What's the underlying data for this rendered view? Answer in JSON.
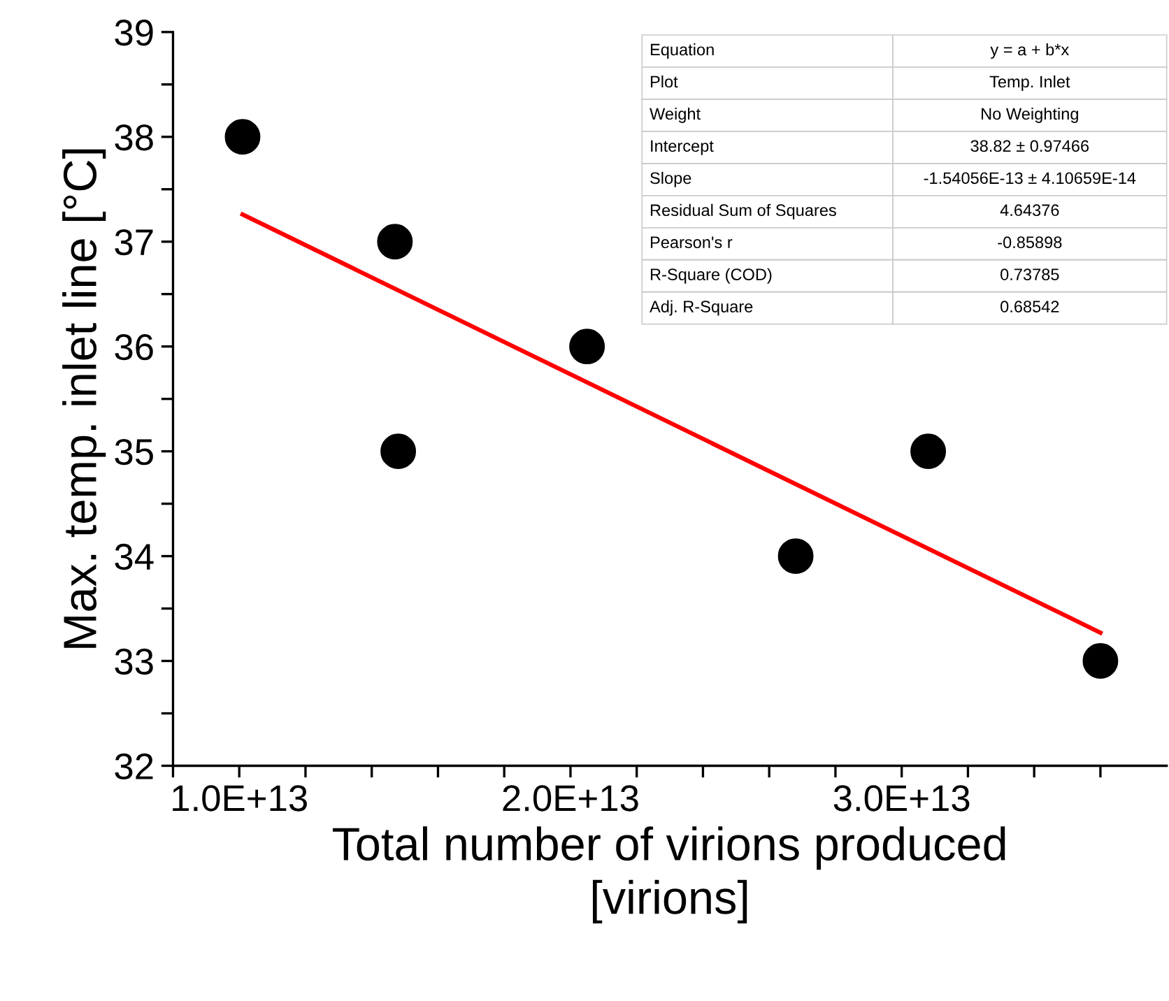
{
  "chart_data": {
    "type": "scatter",
    "xlabel": "Total number of virions produced\n[virions]",
    "ylabel": "Max. temp. inlet line [°C]",
    "series": [
      {
        "color": "#000000",
        "marker": "circle",
        "x": [
          10100000000000.0,
          14700000000000.0,
          14800000000000.0,
          20500000000000.0,
          26800000000000.0,
          30800000000000.0,
          36000000000000.0
        ],
        "values": [
          38,
          37,
          35,
          36,
          34,
          35,
          33
        ]
      },
      {
        "type": "line",
        "color": "#ff0000",
        "marker": "none",
        "line_style": "solid",
        "x": [
          10100000000000.0,
          36000000000000.0
        ],
        "values": [
          37.26,
          33.27
        ]
      }
    ],
    "xlim": [
      8000000000000.0,
      38000000000000.0
    ],
    "xticks": [
      {
        "value": 8000000000000.0,
        "label": null
      },
      {
        "value": 10000000000000.0,
        "label": "1.0E+13"
      },
      {
        "value": 12000000000000.0,
        "label": null
      },
      {
        "value": 14000000000000.0,
        "label": null
      },
      {
        "value": 16000000000000.0,
        "label": null
      },
      {
        "value": 18000000000000.0,
        "label": null
      },
      {
        "value": 20000000000000.0,
        "label": "2.0E+13"
      },
      {
        "value": 22000000000000.0,
        "label": null
      },
      {
        "value": 24000000000000.0,
        "label": null
      },
      {
        "value": 26000000000000.0,
        "label": null
      },
      {
        "value": 28000000000000.0,
        "label": null
      },
      {
        "value": 30000000000000.0,
        "label": "3.0E+13"
      },
      {
        "value": 32000000000000.0,
        "label": null
      },
      {
        "value": 34000000000000.0,
        "label": null
      },
      {
        "value": 36000000000000.0,
        "label": null
      }
    ],
    "ylim": [
      32,
      39
    ],
    "yticks": [
      32,
      {
        "value": 32.5,
        "label": null
      },
      33,
      {
        "value": 33.5,
        "label": null
      },
      34,
      {
        "value": 34.5,
        "label": null
      },
      35,
      {
        "value": 35.5,
        "label": null
      },
      36,
      {
        "value": 36.5,
        "label": null
      },
      37,
      {
        "value": 37.5,
        "label": null
      },
      38,
      {
        "value": 38.5,
        "label": null
      },
      39
    ],
    "grid": false,
    "legend": false,
    "annotations": [
      "Equation",
      "y = a + b*x",
      "Plot",
      "Temp. Inlet",
      "Weight",
      "No Weighting",
      "Intercept",
      "38.82 ± 0.97466",
      "Slope",
      "-1.54056E-13 ± 4.10659E-14",
      "Residual Sum of Squares",
      "4.64376",
      "Pearson's r",
      "-0.85898",
      "R-Square (COD)",
      "0.73785",
      "Adj. R-Square",
      "0.68542"
    ]
  }
}
